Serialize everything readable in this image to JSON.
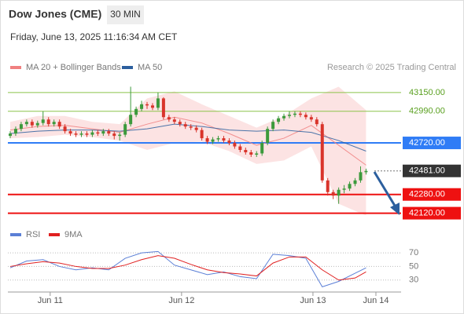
{
  "header": {
    "title": "Dow Jones (CME)",
    "timeframe": "30 MIN",
    "timestamp": "Friday, June 13, 2025 11:16:34 AM CET"
  },
  "chart_data": [
    {
      "type": "candlestick",
      "source": "Research © 2025 Trading Central",
      "up_color": "#3c9a3c",
      "down_color": "#d9342b",
      "xlim": [
        -0.43,
        71.4
      ],
      "ylim": [
        42030,
        43270
      ],
      "open": [
        42780,
        42800,
        42840,
        42880,
        42900,
        42870,
        42890,
        42920,
        42880,
        42900,
        42860,
        42820,
        42800,
        42790,
        42800,
        42790,
        42810,
        42800,
        42820,
        42800,
        42780,
        42790,
        42880,
        42960,
        43010,
        43050,
        43040,
        43020,
        43100,
        42940,
        42920,
        42900,
        42880,
        42860,
        42850,
        42830,
        42760,
        42730,
        42750,
        42760,
        42740,
        42720,
        42690,
        42660,
        42640,
        42620,
        42630,
        42720,
        42840,
        42900,
        42930,
        42950,
        42960,
        42970,
        42960,
        42940,
        42920,
        42880,
        42400,
        42300,
        42270,
        42320,
        42330,
        42370,
        42400,
        42470
      ],
      "high": [
        42820,
        42860,
        42900,
        42920,
        42920,
        42910,
        42990,
        42940,
        42920,
        42920,
        42880,
        42840,
        42820,
        42820,
        42820,
        42830,
        42830,
        42840,
        42840,
        42820,
        42810,
        42900,
        43200,
        43030,
        43080,
        43070,
        43060,
        43150,
        43110,
        42960,
        42940,
        42920,
        42900,
        42880,
        42870,
        42850,
        42780,
        42770,
        42780,
        42780,
        42760,
        42740,
        42710,
        42680,
        42660,
        42650,
        42740,
        42860,
        42920,
        42950,
        42970,
        42990,
        42990,
        42990,
        42980,
        42960,
        42940,
        42900,
        42420,
        42320,
        42340,
        42360,
        42390,
        42420,
        42520,
        42500
      ],
      "low": [
        42760,
        42780,
        42820,
        42860,
        42850,
        42850,
        42870,
        42860,
        42860,
        42840,
        42800,
        42780,
        42770,
        42770,
        42770,
        42770,
        42780,
        42780,
        42780,
        42750,
        42740,
        42770,
        42860,
        42940,
        42990,
        43010,
        43000,
        43000,
        42920,
        42900,
        42880,
        42860,
        42840,
        42830,
        42810,
        42740,
        42710,
        42710,
        42730,
        42720,
        42700,
        42670,
        42640,
        42620,
        42600,
        42600,
        42610,
        42700,
        42820,
        42880,
        42910,
        42930,
        42940,
        42940,
        42920,
        42900,
        42860,
        42380,
        42270,
        42240,
        42200,
        42290,
        42310,
        42350,
        42380,
        42450
      ],
      "close": [
        42800,
        42840,
        42880,
        42900,
        42870,
        42890,
        42920,
        42880,
        42900,
        42860,
        42820,
        42800,
        42790,
        42800,
        42790,
        42810,
        42800,
        42820,
        42800,
        42780,
        42790,
        42880,
        42960,
        43010,
        43050,
        43040,
        43020,
        43100,
        42940,
        42920,
        42900,
        42880,
        42860,
        42850,
        42830,
        42760,
        42730,
        42750,
        42760,
        42740,
        42720,
        42690,
        42660,
        42640,
        42620,
        42630,
        42720,
        42840,
        42900,
        42930,
        42950,
        42960,
        42970,
        42960,
        42940,
        42920,
        42880,
        42400,
        42300,
        42270,
        42320,
        42330,
        42370,
        42400,
        42470,
        42481
      ],
      "series": [
        {
          "name": "MA 20 + Bollinger Bands",
          "color": "#f08080",
          "x": [
            0,
            5,
            10,
            15,
            20,
            25,
            30,
            35,
            40,
            45,
            50,
            55,
            60,
            65
          ],
          "values": [
            42830,
            42860,
            42870,
            42840,
            42810,
            42880,
            42940,
            42890,
            42800,
            42700,
            42760,
            42870,
            42700,
            42530
          ],
          "upper": [
            42900,
            42950,
            42950,
            42900,
            42880,
            43100,
            43160,
            43050,
            42950,
            42850,
            42950,
            43100,
            43200,
            43000
          ],
          "lower": [
            42760,
            42770,
            42790,
            42770,
            42740,
            42660,
            42720,
            42730,
            42650,
            42540,
            42570,
            42690,
            42200,
            42100
          ]
        },
        {
          "name": "MA 50",
          "color": "#2c5f9e",
          "x": [
            0,
            5,
            10,
            15,
            20,
            25,
            30,
            35,
            40,
            45,
            50,
            55,
            60,
            65
          ],
          "values": [
            42800,
            42820,
            42830,
            42830,
            42820,
            42840,
            42880,
            42860,
            42830,
            42820,
            42830,
            42810,
            42740,
            42650
          ]
        }
      ],
      "levels": [
        {
          "value": 43150,
          "label": "43150.00",
          "color": "#8bc34a",
          "style": "line"
        },
        {
          "value": 42990,
          "label": "42990.00",
          "color": "#8bc34a",
          "style": "line"
        },
        {
          "value": 42720,
          "label": "42720.00",
          "color": "#2f7cf6",
          "style": "box"
        },
        {
          "value": 42481,
          "label": "42481.00",
          "color": "#333333",
          "style": "last"
        },
        {
          "value": 42280,
          "label": "42280.00",
          "color": "#ee1111",
          "style": "box"
        },
        {
          "value": 42120,
          "label": "42120.00",
          "color": "#ee1111",
          "style": "box"
        }
      ]
    },
    {
      "type": "line",
      "xlim": [
        -0.43,
        71.4
      ],
      "ylim": [
        17,
        84
      ],
      "yticks": [
        70,
        50,
        30
      ],
      "grid": true,
      "xticks": [
        {
          "value": 7.3,
          "label": "Jun 11"
        },
        {
          "value": 31.3,
          "label": "Jun 12"
        },
        {
          "value": 55.3,
          "label": "Jun 13"
        },
        {
          "value": 66.8,
          "label": "Jun 14"
        }
      ],
      "series": [
        {
          "name": "RSI",
          "color": "#5b7fd6",
          "x": [
            0,
            3,
            6,
            9,
            12,
            15,
            18,
            21,
            24,
            27,
            30,
            33,
            36,
            39,
            42,
            45,
            48,
            51,
            54,
            57,
            60,
            63,
            65
          ],
          "values": [
            48,
            58,
            60,
            50,
            45,
            48,
            45,
            62,
            70,
            72,
            52,
            45,
            38,
            42,
            35,
            32,
            68,
            66,
            62,
            20,
            28,
            40,
            48
          ]
        },
        {
          "name": "9MA",
          "color": "#e02020",
          "x": [
            0,
            3,
            6,
            9,
            12,
            15,
            18,
            21,
            24,
            27,
            30,
            33,
            36,
            39,
            42,
            45,
            48,
            51,
            54,
            57,
            60,
            63,
            65
          ],
          "values": [
            50,
            54,
            57,
            55,
            50,
            47,
            47,
            52,
            60,
            66,
            62,
            53,
            45,
            41,
            39,
            36,
            55,
            64,
            64,
            45,
            30,
            33,
            42
          ]
        }
      ]
    }
  ]
}
